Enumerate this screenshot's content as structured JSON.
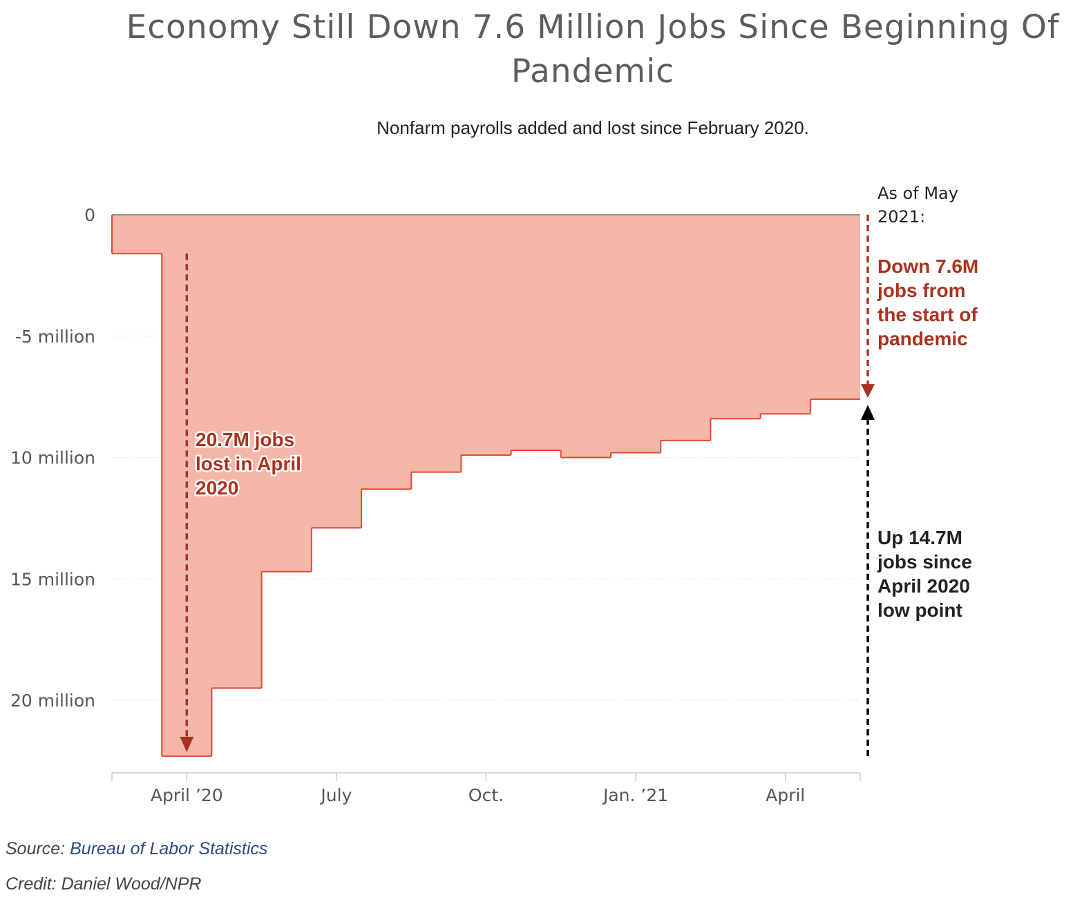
{
  "title": "Economy Still Down 7.6 Million Jobs Since Beginning Of Pandemic",
  "subtitle": "Nonfarm payrolls added and lost since February 2020.",
  "chart_data": {
    "type": "area",
    "series": [
      {
        "x": [
          "2020-03",
          "2020-04",
          "2020-05",
          "2020-06",
          "2020-07",
          "2020-08",
          "2020-09",
          "2020-10",
          "2020-11",
          "2020-12",
          "2021-01",
          "2021-02",
          "2021-03",
          "2021-04",
          "2021-05"
        ],
        "values": [
          -1.6,
          -22.3,
          -19.5,
          -14.7,
          -12.9,
          -11.3,
          -10.6,
          -9.9,
          -9.7,
          -10.0,
          -9.8,
          -9.3,
          -8.4,
          -8.2,
          -7.6
        ]
      }
    ],
    "yticks": [
      {
        "value": 0,
        "label": "0"
      },
      {
        "value": -5,
        "label": "-5 million"
      },
      {
        "value": -10,
        "label": "10 million"
      },
      {
        "value": -15,
        "label": "15 million"
      },
      {
        "value": -20,
        "label": "20 million"
      }
    ],
    "xticks": [
      {
        "value": "2020-04",
        "label": "April ’20"
      },
      {
        "value": "2020-07",
        "label": "July"
      },
      {
        "value": "2020-10",
        "label": "Oct."
      },
      {
        "value": "2021-01",
        "label": "Jan. ’21"
      },
      {
        "value": "2021-04",
        "label": "April"
      }
    ],
    "ylim": [
      -22.6,
      0
    ],
    "grid": true,
    "colors": {
      "fill": "#f4b7aa",
      "line": "#e04a2d",
      "down_arrow": "#a9331f",
      "up_arrow": "#000000",
      "grid": "#dddddd"
    },
    "annotations": {
      "april_loss": {
        "lines": [
          "20.7M jobs",
          "lost in April",
          "2020"
        ],
        "color": "#a9331f"
      },
      "as_of": {
        "lines": [
          "As of May",
          "2021:"
        ]
      },
      "down": {
        "lines": [
          "Down 7.6M",
          "jobs from",
          "the start of",
          "pandemic"
        ],
        "color": "#a9331f"
      },
      "up": {
        "lines": [
          "Up 14.7M",
          "jobs since",
          "April 2020",
          "low point"
        ],
        "color": "#222222"
      }
    }
  },
  "footer": {
    "source_prefix": "Source: ",
    "source_name": "Bureau of Labor Statistics",
    "credit": "Credit: Daniel Wood/NPR"
  }
}
